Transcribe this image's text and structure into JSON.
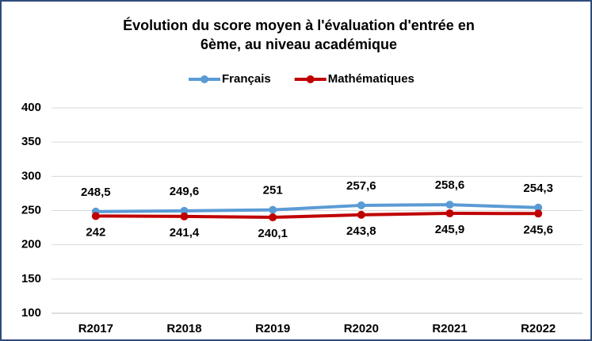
{
  "chart_data": {
    "type": "line",
    "title": [
      "Évolution du score moyen à l'évaluation d'entrée en",
      "6ème, au niveau académique"
    ],
    "categories": [
      "R2017",
      "R2018",
      "R2019",
      "R2020",
      "R2021",
      "R2022"
    ],
    "series": [
      {
        "name": "Français",
        "color": "#5b9bd5",
        "values": [
          248.5,
          249.6,
          251,
          257.6,
          258.6,
          254.3
        ],
        "value_labels": [
          "248,5",
          "249,6",
          "251",
          "257,6",
          "258,6",
          "254,3"
        ],
        "label_position": "above"
      },
      {
        "name": "Mathématiques",
        "color": "#c00000",
        "values": [
          242,
          241.4,
          240.1,
          243.8,
          245.9,
          245.6
        ],
        "value_labels": [
          "242",
          "241,4",
          "240,1",
          "243,8",
          "245,9",
          "245,6"
        ],
        "label_position": "below"
      }
    ],
    "ylim": [
      100,
      400
    ],
    "yticks": [
      100,
      150,
      200,
      250,
      300,
      350,
      400
    ],
    "grid": true,
    "legend": "top"
  }
}
